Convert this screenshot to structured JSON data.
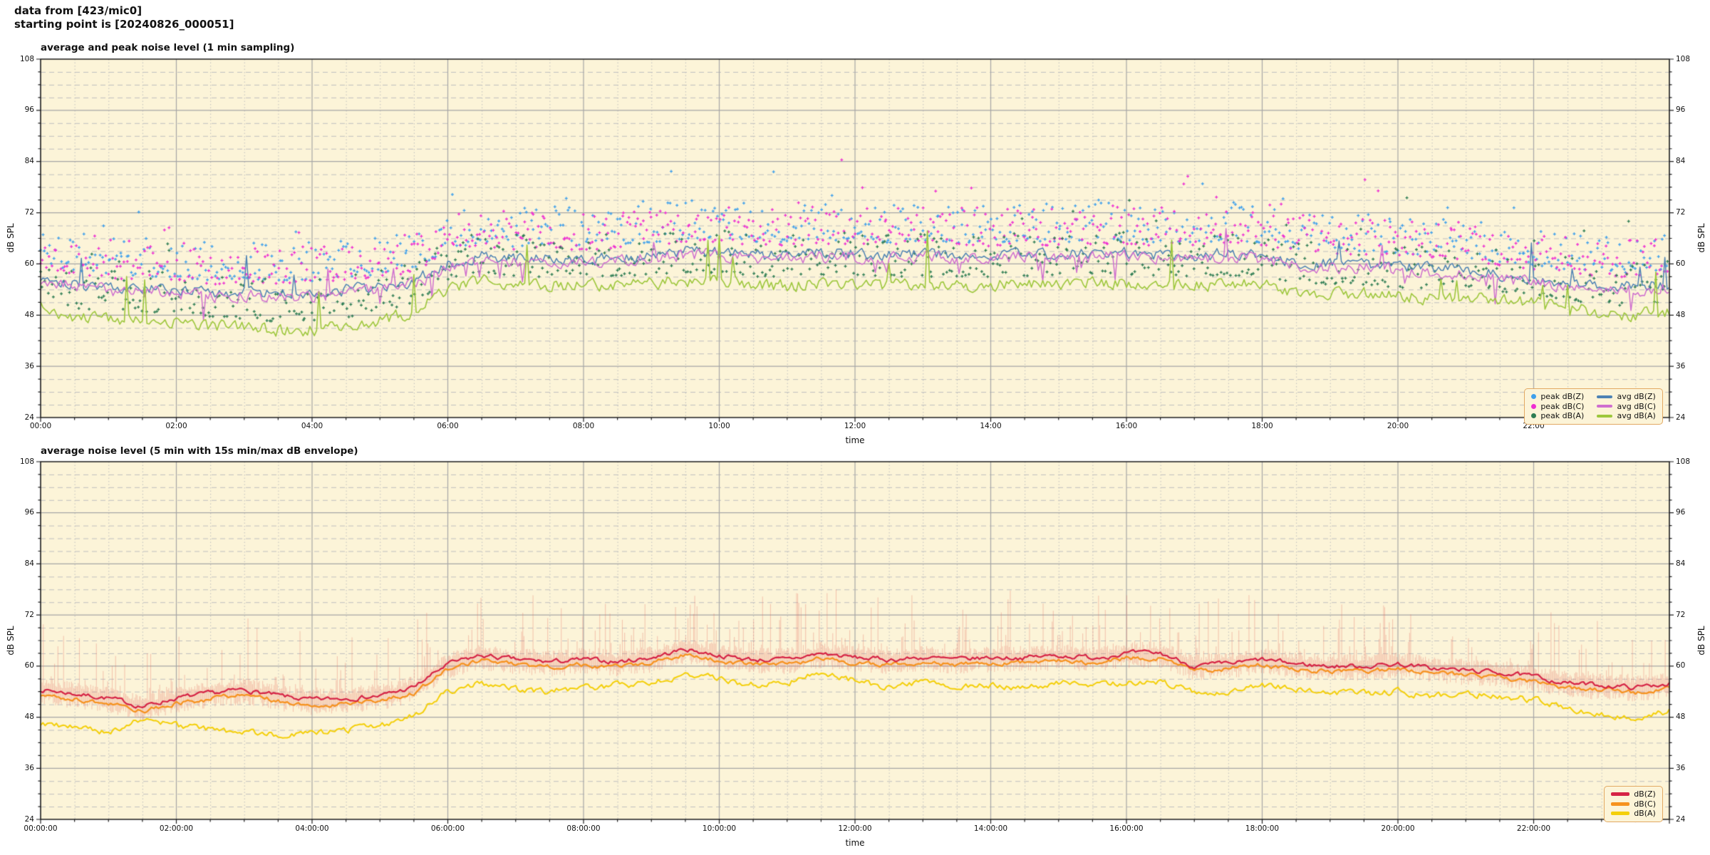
{
  "header": {
    "line1": "data from [423/mic0]",
    "line2": "starting point is [20240826_000051]"
  },
  "chart_data": [
    {
      "type": "line+scatter",
      "title": "average and peak noise level (1 min sampling)",
      "xlabel": "time",
      "ylabel": "dB SPL",
      "ylim": [
        24,
        108
      ],
      "xlim_hours": [
        0,
        24
      ],
      "yticks": [
        108,
        96,
        84,
        72,
        60,
        48,
        36,
        24
      ],
      "xtick_hours": [
        0,
        2,
        4,
        6,
        8,
        10,
        12,
        14,
        16,
        18,
        20,
        22
      ],
      "xtick_labels": [
        "00:00",
        "02:00",
        "04:00",
        "06:00",
        "08:00",
        "10:00",
        "12:00",
        "14:00",
        "16:00",
        "18:00",
        "20:00",
        "22:00"
      ],
      "grid": {
        "major": "solid gray",
        "minor_y_every_dB": 3,
        "minor_x_every_min": 30
      },
      "plot_bg": "#fcf4d8",
      "x_hours": [
        0,
        0.5,
        1,
        1.5,
        2,
        2.5,
        3,
        3.5,
        4,
        4.5,
        5,
        5.5,
        6,
        6.5,
        7,
        7.5,
        8,
        8.5,
        9,
        9.5,
        10,
        10.5,
        11,
        11.5,
        12,
        12.5,
        13,
        13.5,
        14,
        14.5,
        15,
        15.5,
        16,
        16.5,
        17,
        17.5,
        18,
        18.5,
        19,
        19.5,
        20,
        20.5,
        21,
        21.5,
        22,
        22.5,
        23,
        23.5,
        24
      ],
      "series": [
        {
          "name": "avg dB(Z)",
          "style": "line",
          "color": "#4d82b4",
          "values": [
            57,
            55.5,
            54.5,
            54,
            54,
            53,
            53.5,
            53,
            53,
            54,
            54.5,
            56,
            60,
            62,
            61,
            61.5,
            61,
            61.5,
            62,
            63,
            63,
            62,
            62,
            62.5,
            62.5,
            62,
            62.5,
            62,
            62,
            62.5,
            62,
            62.5,
            62.5,
            62,
            62,
            62.5,
            62,
            60.5,
            60,
            60,
            59.5,
            59,
            58.5,
            57.5,
            56.5,
            55.5,
            55,
            54.5,
            55.5
          ]
        },
        {
          "name": "avg dB(C)",
          "style": "line",
          "color": "#cf6ecf",
          "values": [
            56.2,
            54.7,
            53.7,
            53.2,
            53.2,
            52.2,
            52.7,
            52.2,
            52.2,
            53.2,
            53.7,
            55.2,
            59.2,
            61.2,
            60.2,
            60.7,
            60.2,
            60.7,
            61.2,
            62.2,
            62.2,
            61.2,
            61.2,
            61.7,
            61.7,
            61.2,
            61.7,
            61.2,
            61.2,
            61.7,
            61.2,
            61.7,
            61.7,
            61.2,
            61.2,
            61.7,
            61.2,
            59.7,
            59.2,
            59.2,
            58.7,
            58.2,
            57.7,
            56.7,
            55.7,
            54.7,
            54.2,
            53.7,
            54.7
          ]
        },
        {
          "name": "avg dB(A)",
          "style": "line",
          "color": "#9dc73c",
          "values": [
            50,
            47.5,
            47,
            46.8,
            46.5,
            45.5,
            45,
            44.5,
            44.5,
            45.5,
            46.5,
            49,
            54,
            56,
            55,
            55,
            55,
            55.2,
            55.5,
            56,
            56,
            55,
            55,
            55.5,
            55.5,
            55,
            55,
            55,
            55,
            55.2,
            55.5,
            55.5,
            55.5,
            55,
            55,
            55.2,
            55,
            53.5,
            53,
            53,
            52.5,
            52,
            52,
            51.5,
            51,
            49.5,
            48.5,
            48,
            49
          ]
        },
        {
          "name": "peak dB(Z)",
          "style": "scatter",
          "color": "#3fa0ec",
          "relation": "approx avg dB(Z) + 3..12 dB each minute, sparse outliers up to ~86 dB"
        },
        {
          "name": "peak dB(C)",
          "style": "scatter",
          "color": "#ee2ed2",
          "relation": "approx avg dB(C) + 3..12 dB each minute, sparse outliers up to ~85 dB"
        },
        {
          "name": "peak dB(A)",
          "style": "scatter",
          "color": "#2e7d54",
          "relation": "approx avg dB(A) + 2..12 dB each minute, sparse outliers up to ~75 dB"
        }
      ],
      "legend": {
        "position": "lower right",
        "entries": [
          {
            "label": "peak dB(Z)",
            "marker": "dot",
            "color": "#3fa0ec"
          },
          {
            "label": "peak dB(C)",
            "marker": "dot",
            "color": "#ee2ed2"
          },
          {
            "label": "peak dB(A)",
            "marker": "dot",
            "color": "#2e7d54"
          },
          {
            "label": "avg dB(Z)",
            "marker": "line",
            "color": "#4d82b4"
          },
          {
            "label": "avg dB(C)",
            "marker": "line",
            "color": "#cf6ecf"
          },
          {
            "label": "avg dB(A)",
            "marker": "line",
            "color": "#9dc73c"
          }
        ]
      }
    },
    {
      "type": "line+envelope",
      "title": "average noise level (5 min with 15s min/max dB envelope)",
      "xlabel": "time",
      "ylabel": "dB SPL",
      "ylim": [
        24,
        108
      ],
      "xlim_hours": [
        0,
        24
      ],
      "yticks": [
        108,
        96,
        84,
        72,
        60,
        48,
        36,
        24
      ],
      "xtick_hours": [
        0,
        2,
        4,
        6,
        8,
        10,
        12,
        14,
        16,
        18,
        20,
        22
      ],
      "xtick_labels": [
        "00:00:00",
        "02:00:00",
        "04:00:00",
        "06:00:00",
        "08:00:00",
        "10:00:00",
        "12:00:00",
        "14:00:00",
        "16:00:00",
        "18:00:00",
        "20:00:00",
        "22:00:00"
      ],
      "grid": {
        "major": "solid gray",
        "minor_y_every_dB": 3,
        "minor_x_every_min": 30
      },
      "plot_bg": "#fcf4d8",
      "x_hours": [
        0,
        0.5,
        1,
        1.5,
        2,
        2.5,
        3,
        3.5,
        4,
        4.5,
        5,
        5.5,
        6,
        6.5,
        7,
        7.5,
        8,
        8.5,
        9,
        9.5,
        10,
        10.5,
        11,
        11.5,
        12,
        12.5,
        13,
        13.5,
        14,
        14.5,
        15,
        15.5,
        16,
        16.5,
        17,
        17.5,
        18,
        18.5,
        19,
        19.5,
        20,
        20.5,
        21,
        21.5,
        22,
        22.5,
        23,
        23.5,
        24
      ],
      "series": [
        {
          "name": "dB(Z)",
          "style": "line",
          "color": "#d62345",
          "values": [
            54.5,
            53.5,
            52.5,
            50.5,
            52.5,
            53.5,
            54.5,
            53,
            52,
            52.5,
            53,
            55,
            60.5,
            62.5,
            61.5,
            61,
            61.5,
            61,
            62,
            64,
            62.5,
            61.5,
            61.5,
            63,
            62,
            61.5,
            62,
            61.5,
            62,
            62,
            62.5,
            62,
            63,
            63,
            60,
            60.5,
            61.5,
            60.5,
            60,
            60,
            60.5,
            59.5,
            59,
            58.5,
            57.5,
            56,
            55.5,
            55,
            56
          ]
        },
        {
          "name": "dB(C)",
          "style": "line",
          "color": "#f6921e",
          "values": [
            53.3,
            52.3,
            51.3,
            49.3,
            51.3,
            52.3,
            53.3,
            51.8,
            50.8,
            51.3,
            51.8,
            53.8,
            59.3,
            61.3,
            60.3,
            59.8,
            60.3,
            59.8,
            60.8,
            62.8,
            61.3,
            60.3,
            60.3,
            61.8,
            60.8,
            60.3,
            60.8,
            60.3,
            60.8,
            60.8,
            61.3,
            60.8,
            61.8,
            61.8,
            58.8,
            59.3,
            60.3,
            59.3,
            58.8,
            58.8,
            59.3,
            58.3,
            57.8,
            57.3,
            56.3,
            54.8,
            54.3,
            53.8,
            54.8
          ]
        },
        {
          "name": "dB(A)",
          "style": "line",
          "color": "#f4cf0a",
          "values": [
            46.5,
            45.5,
            44.5,
            47.5,
            46,
            45,
            44.5,
            44,
            44,
            45,
            46,
            48.5,
            54,
            56,
            54.5,
            54,
            55,
            55.5,
            56,
            58,
            57,
            55.5,
            56,
            58.5,
            56.5,
            55,
            56,
            55,
            55.5,
            55,
            56,
            55.5,
            56,
            56.5,
            53.5,
            54,
            55.5,
            54.5,
            54,
            53.5,
            54,
            53,
            53.5,
            53,
            52,
            50,
            48.5,
            48,
            49.5
          ]
        }
      ],
      "envelope": {
        "around": "dB(Z)",
        "color": "rgba(228,112,98,0.35)",
        "min_offset_dB": [
          -3.5,
          -1
        ],
        "max_offset_typical_dB": [
          1,
          3
        ],
        "max_spikes_to_dB": 78
      },
      "legend": {
        "position": "lower right",
        "entries": [
          {
            "label": "dB(Z)",
            "marker": "line",
            "color": "#d62345"
          },
          {
            "label": "dB(C)",
            "marker": "line",
            "color": "#f6921e"
          },
          {
            "label": "dB(A)",
            "marker": "line",
            "color": "#f4cf0a"
          }
        ]
      }
    }
  ]
}
